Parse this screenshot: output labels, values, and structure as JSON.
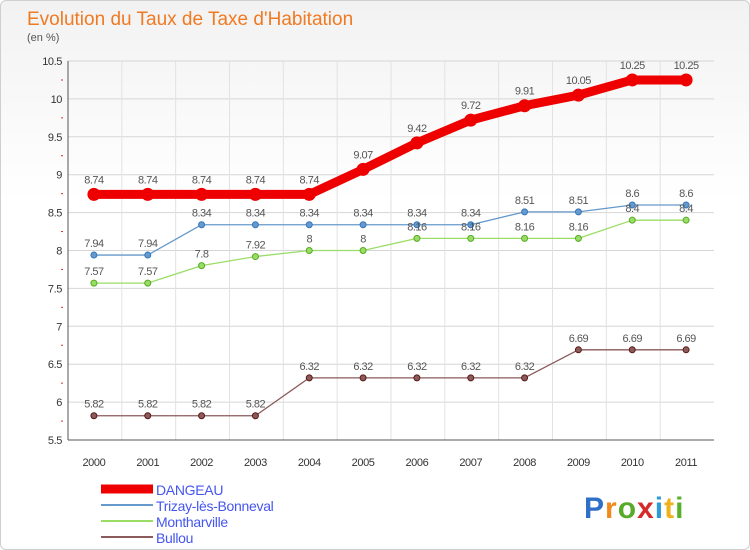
{
  "title": "Evolution du Taux de Taxe d'Habitation",
  "subtitle": "(en %)",
  "brand": {
    "letters": [
      "P",
      "r",
      "o",
      "x",
      "i",
      "t",
      "i"
    ],
    "colors": [
      "#2f6fc8",
      "#f08a1c",
      "#5aaa2a",
      "#d6292a",
      "#2f9ad8",
      "#f0b21c",
      "#58b02a"
    ]
  },
  "chart_data": {
    "type": "line",
    "title": "Evolution du Taux de Taxe d'Habitation",
    "ylabel": "(en %)",
    "xlabel": "",
    "x": [
      "2000",
      "2001",
      "2002",
      "2003",
      "2004",
      "2005",
      "2006",
      "2007",
      "2008",
      "2009",
      "2010",
      "2011"
    ],
    "ylim": [
      5.5,
      10.5
    ],
    "yticks": [
      "5.5",
      "6",
      "6.5",
      "7",
      "7.5",
      "8",
      "8.5",
      "9",
      "9.5",
      "10",
      "10.5"
    ],
    "grid": true,
    "legend_position": "bottom-left",
    "series": [
      {
        "name": "DANGEAU",
        "color": "#ee0000",
        "values": [
          8.74,
          8.74,
          8.74,
          8.74,
          8.74,
          9.07,
          9.42,
          9.72,
          9.91,
          10.05,
          10.25,
          10.25
        ],
        "labels": [
          "8.74",
          "8.74",
          "8.74",
          "8.74",
          "8.74",
          "9.07",
          "9.42",
          "9.72",
          "9.91",
          "10.05",
          "10.25",
          "10.25"
        ]
      },
      {
        "name": "Trizay-lès-Bonneval",
        "color": "#6699cc",
        "values": [
          7.94,
          7.94,
          8.34,
          8.34,
          8.34,
          8.34,
          8.34,
          8.34,
          8.51,
          8.51,
          8.6,
          8.6
        ],
        "labels": [
          "7.94",
          "7.94",
          "8.34",
          "8.34",
          "8.34",
          "8.34",
          "8.34",
          "8.34",
          "8.51",
          "8.51",
          "8.6",
          "8.6"
        ]
      },
      {
        "name": "Montharville",
        "color": "#99dd66",
        "values": [
          7.57,
          7.57,
          7.8,
          7.92,
          8,
          8,
          8.16,
          8.16,
          8.16,
          8.16,
          8.4,
          8.4
        ],
        "labels": [
          "7.57",
          "7.57",
          "7.8",
          "7.92",
          "8",
          "8",
          "8.16",
          "8.16",
          "8.16",
          "8.16",
          "8.4",
          "8.4"
        ]
      },
      {
        "name": "Bullou",
        "color": "#8b5a5a",
        "values": [
          5.82,
          5.82,
          5.82,
          5.82,
          6.32,
          6.32,
          6.32,
          6.32,
          6.32,
          6.69,
          6.69,
          6.69
        ],
        "labels": [
          "5.82",
          "5.82",
          "5.82",
          "5.82",
          "6.32",
          "6.32",
          "6.32",
          "6.32",
          "6.32",
          "6.69",
          "6.69",
          "6.69"
        ]
      }
    ]
  }
}
